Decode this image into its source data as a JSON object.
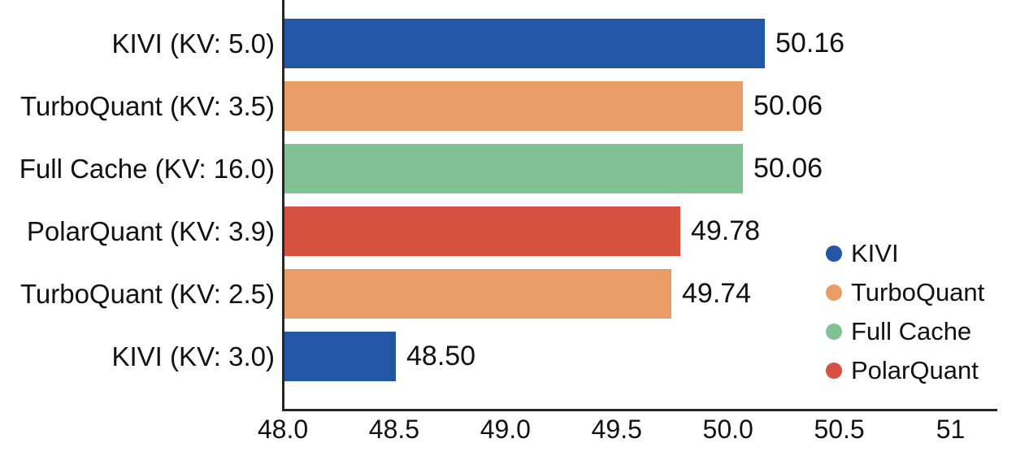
{
  "chart_data": {
    "type": "bar",
    "orientation": "horizontal",
    "title": "",
    "xlabel": "",
    "ylabel": "",
    "grid": false,
    "categories": [
      "KIVI (KV: 5.0)",
      "TurboQuant (KV: 3.5)",
      "Full Cache (KV: 16.0)",
      "PolarQuant (KV: 3.9)",
      "TurboQuant (KV: 2.5)",
      "KIVI (KV: 3.0)"
    ],
    "values": [
      50.16,
      50.06,
      50.06,
      49.78,
      49.74,
      48.5
    ],
    "value_labels": [
      "50.16",
      "50.06",
      "50.06",
      "49.78",
      "49.74",
      "48.50"
    ],
    "bar_series": [
      "KIVI",
      "TurboQuant",
      "Full Cache",
      "PolarQuant",
      "TurboQuant",
      "KIVI"
    ],
    "series_colors": {
      "KIVI": "#2456a6",
      "TurboQuant": "#e99c66",
      "Full Cache": "#82c194",
      "PolarQuant": "#d75140"
    },
    "xlim": [
      48.0,
      51.21
    ],
    "x_ticks": [
      {
        "label": "48.0",
        "value": 48.0
      },
      {
        "label": "48.5",
        "value": 48.5
      },
      {
        "label": "49.0",
        "value": 49.0
      },
      {
        "label": "49.5",
        "value": 49.5
      },
      {
        "label": "50.0",
        "value": 50.0
      },
      {
        "label": "50.5",
        "value": 50.5
      },
      {
        "label": "51",
        "value": 51.0
      }
    ],
    "legend": [
      {
        "label": "KIVI",
        "color": "#2456a6"
      },
      {
        "label": "TurboQuant",
        "color": "#e99c66"
      },
      {
        "label": "Full Cache",
        "color": "#82c194"
      },
      {
        "label": "PolarQuant",
        "color": "#d75140"
      }
    ],
    "legend_position": "right-lower",
    "axis_color": "#262626",
    "text_color": "#111111",
    "background_color": "#ffffff"
  }
}
